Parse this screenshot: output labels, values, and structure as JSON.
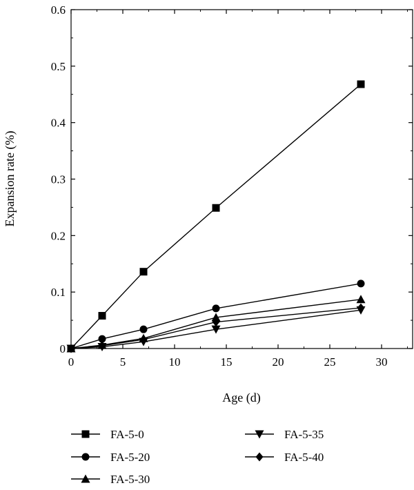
{
  "chart_data": {
    "type": "line",
    "title": "",
    "xlabel": "Age (d)",
    "ylabel": "Expansion rate (%)",
    "xlim": [
      0,
      33
    ],
    "ylim": [
      0,
      0.6
    ],
    "x_ticks": [
      "0",
      "5",
      "10",
      "15",
      "20",
      "25",
      "30"
    ],
    "y_ticks": [
      "0",
      "0.1",
      "0.2",
      "0.3",
      "0.4",
      "0.5",
      "0.6"
    ],
    "grid": false,
    "legend_position": "bottom",
    "x": [
      0,
      3,
      7,
      14,
      28
    ],
    "series": [
      {
        "name": "FA-5-0",
        "marker": "square",
        "values": [
          0,
          0.058,
          0.136,
          0.249,
          0.468
        ]
      },
      {
        "name": "FA-5-20",
        "marker": "circle",
        "values": [
          0,
          0.017,
          0.034,
          0.071,
          0.115
        ]
      },
      {
        "name": "FA-5-30",
        "marker": "triangle-up",
        "values": [
          0,
          0.006,
          0.018,
          0.055,
          0.087
        ]
      },
      {
        "name": "FA-5-35",
        "marker": "triangle-down",
        "values": [
          0,
          0.003,
          0.012,
          0.034,
          0.068
        ]
      },
      {
        "name": "FA-5-40",
        "marker": "diamond",
        "values": [
          0,
          0.005,
          0.016,
          0.047,
          0.072
        ]
      }
    ],
    "colors": {
      "line": "#000000",
      "marker": "#000000"
    }
  }
}
